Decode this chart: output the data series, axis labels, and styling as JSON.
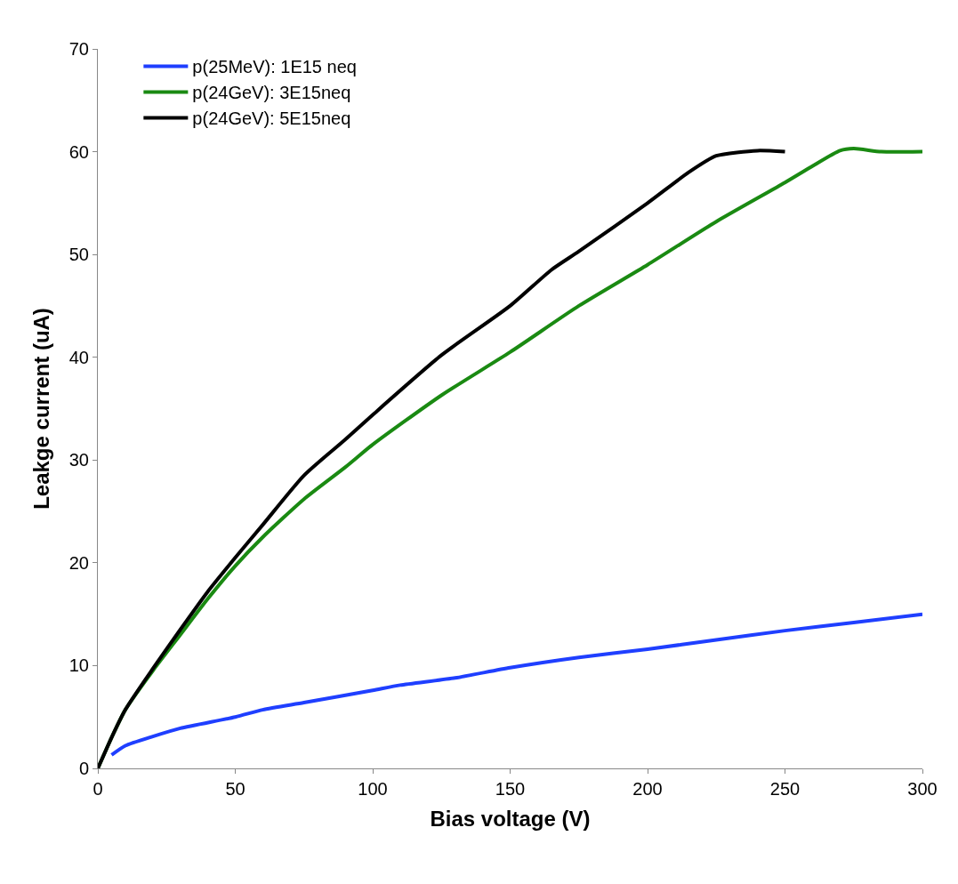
{
  "chart_data": {
    "type": "line",
    "xlabel": "Bias voltage (V)",
    "ylabel": "Leakge current (uA)",
    "xlim": [
      0,
      300
    ],
    "xticks": [
      0,
      50,
      100,
      150,
      200,
      250,
      300
    ],
    "ylim": [
      0,
      70
    ],
    "yticks": [
      0,
      10,
      20,
      30,
      40,
      50,
      60,
      70
    ],
    "legend": "top left",
    "marker": "none",
    "line_style": "solid",
    "series": [
      {
        "name": "p(25MeV): 1E15 neq",
        "color": "#1f3fff",
        "x": [
          5,
          10,
          20,
          30,
          50,
          60,
          75,
          100,
          110,
          130,
          150,
          175,
          200,
          225,
          250,
          275,
          300
        ],
        "values": [
          1.3,
          2.2,
          3.1,
          3.9,
          5,
          5.7,
          6.4,
          7.6,
          8.1,
          8.8,
          9.8,
          10.8,
          11.6,
          12.5,
          13.4,
          14.2,
          15
        ]
      },
      {
        "name": "p(24GeV): 3E15neq",
        "color": "#1a8a12",
        "x": [
          0,
          5,
          10,
          20,
          30,
          40,
          50,
          60,
          75,
          90,
          100,
          125,
          150,
          175,
          200,
          225,
          250,
          260,
          270,
          275,
          285,
          300
        ],
        "values": [
          0,
          3,
          5.7,
          9.5,
          13,
          16.5,
          19.7,
          22.5,
          26.2,
          29.3,
          31.5,
          36.3,
          40.5,
          45,
          49,
          53.2,
          57,
          58.6,
          60.1,
          60.3,
          60,
          60
        ]
      },
      {
        "name": "p(24GeV): 5E15neq",
        "color": "#000000",
        "x": [
          0,
          5,
          10,
          20,
          30,
          40,
          50,
          60,
          75,
          90,
          100,
          125,
          150,
          165,
          175,
          200,
          215,
          225,
          240,
          250
        ],
        "values": [
          0,
          3,
          5.7,
          9.7,
          13.5,
          17.2,
          20.5,
          23.7,
          28.5,
          32,
          34.4,
          40.2,
          45,
          48.5,
          50.3,
          55,
          58,
          59.6,
          60.1,
          60
        ]
      }
    ]
  }
}
